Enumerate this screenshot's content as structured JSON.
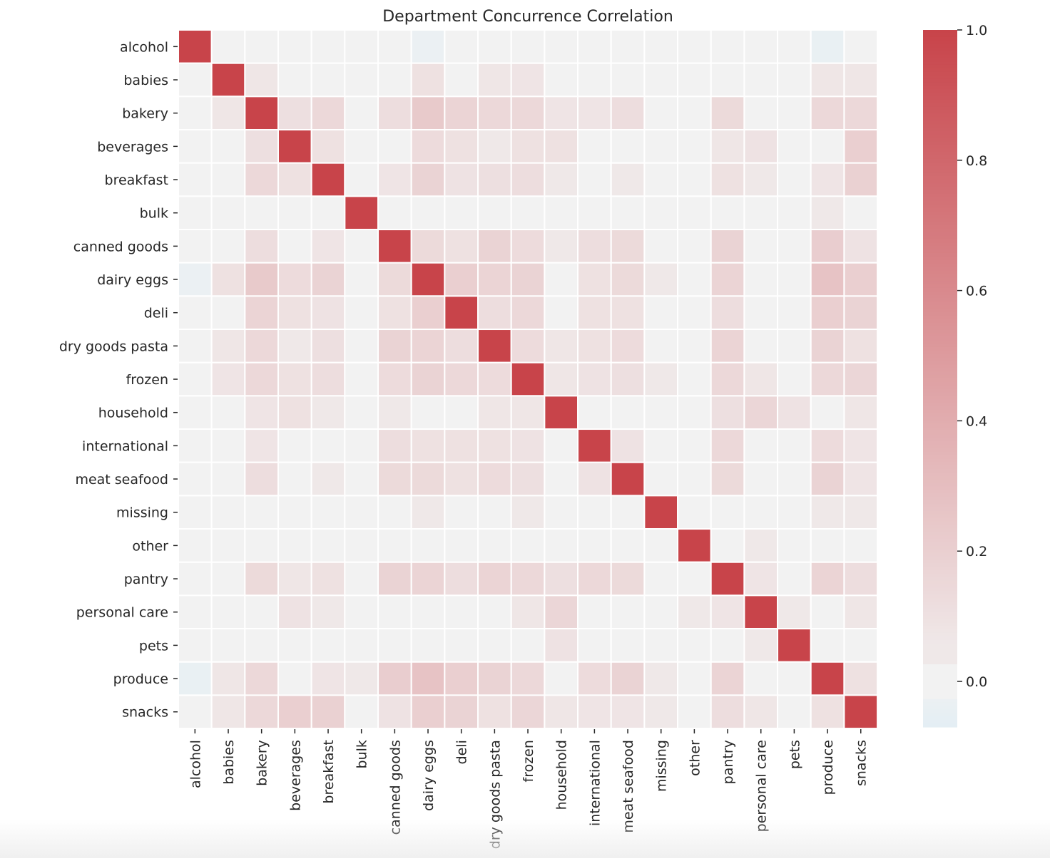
{
  "chart_data": {
    "type": "heatmap",
    "title": "Department Concurrence Correlation",
    "xlabel": "",
    "ylabel": "",
    "categories": [
      "alcohol",
      "babies",
      "bakery",
      "beverages",
      "breakfast",
      "bulk",
      "canned goods",
      "dairy eggs",
      "deli",
      "dry goods pasta",
      "frozen",
      "household",
      "international",
      "meat seafood",
      "missing",
      "other",
      "pantry",
      "personal care",
      "pets",
      "produce",
      "snacks"
    ],
    "matrix": [
      [
        1.0,
        0.0,
        0.0,
        0.0,
        0.0,
        0.0,
        0.0,
        -0.03,
        0.0,
        0.0,
        0.0,
        0.0,
        0.0,
        0.0,
        0.0,
        0.0,
        0.0,
        0.0,
        0.0,
        -0.04,
        0.0
      ],
      [
        0.0,
        1.0,
        0.07,
        0.0,
        0.0,
        0.0,
        0.0,
        0.1,
        0.0,
        0.07,
        0.08,
        0.0,
        0.0,
        0.0,
        0.0,
        0.0,
        0.0,
        0.0,
        0.0,
        0.07,
        0.07
      ],
      [
        0.0,
        0.07,
        1.0,
        0.11,
        0.15,
        0.0,
        0.12,
        0.23,
        0.17,
        0.15,
        0.15,
        0.08,
        0.08,
        0.12,
        0.0,
        0.0,
        0.14,
        0.0,
        0.0,
        0.15,
        0.15
      ],
      [
        0.0,
        0.0,
        0.11,
        1.0,
        0.1,
        0.0,
        0.0,
        0.13,
        0.1,
        0.06,
        0.1,
        0.1,
        0.0,
        0.0,
        0.0,
        0.0,
        0.07,
        0.09,
        0.0,
        0.0,
        0.2
      ],
      [
        0.0,
        0.0,
        0.15,
        0.1,
        1.0,
        0.0,
        0.08,
        0.18,
        0.09,
        0.11,
        0.12,
        0.06,
        0.0,
        0.06,
        0.0,
        0.0,
        0.1,
        0.06,
        0.0,
        0.08,
        0.19
      ],
      [
        0.0,
        0.0,
        0.0,
        0.0,
        0.0,
        1.0,
        0.0,
        0.0,
        0.0,
        0.0,
        0.0,
        0.0,
        0.0,
        0.0,
        0.0,
        0.0,
        0.0,
        0.0,
        0.0,
        0.06,
        0.0
      ],
      [
        0.0,
        0.0,
        0.12,
        0.0,
        0.08,
        0.0,
        1.0,
        0.14,
        0.1,
        0.18,
        0.13,
        0.06,
        0.12,
        0.14,
        0.0,
        0.0,
        0.18,
        0.0,
        0.0,
        0.21,
        0.09
      ],
      [
        -0.03,
        0.1,
        0.23,
        0.13,
        0.18,
        0.0,
        0.14,
        1.0,
        0.2,
        0.17,
        0.18,
        0.0,
        0.1,
        0.14,
        0.06,
        0.0,
        0.17,
        0.0,
        0.0,
        0.27,
        0.2
      ],
      [
        0.0,
        0.0,
        0.17,
        0.1,
        0.09,
        0.0,
        0.1,
        0.2,
        1.0,
        0.12,
        0.15,
        0.0,
        0.1,
        0.1,
        0.0,
        0.0,
        0.12,
        0.0,
        0.0,
        0.2,
        0.18
      ],
      [
        0.0,
        0.07,
        0.15,
        0.06,
        0.11,
        0.0,
        0.18,
        0.17,
        0.12,
        1.0,
        0.13,
        0.07,
        0.1,
        0.13,
        0.0,
        0.0,
        0.17,
        0.0,
        0.0,
        0.18,
        0.1
      ],
      [
        0.0,
        0.08,
        0.15,
        0.1,
        0.12,
        0.0,
        0.13,
        0.18,
        0.15,
        0.13,
        1.0,
        0.07,
        0.09,
        0.11,
        0.06,
        0.0,
        0.15,
        0.07,
        0.0,
        0.15,
        0.16
      ],
      [
        0.0,
        0.0,
        0.08,
        0.1,
        0.06,
        0.0,
        0.06,
        0.0,
        0.0,
        0.07,
        0.07,
        1.0,
        0.0,
        0.0,
        0.0,
        0.0,
        0.11,
        0.16,
        0.09,
        0.0,
        0.07
      ],
      [
        0.0,
        0.0,
        0.08,
        0.0,
        0.0,
        0.0,
        0.12,
        0.1,
        0.1,
        0.1,
        0.09,
        0.0,
        1.0,
        0.09,
        0.0,
        0.0,
        0.15,
        0.0,
        0.0,
        0.13,
        0.08
      ],
      [
        0.0,
        0.0,
        0.12,
        0.0,
        0.06,
        0.0,
        0.14,
        0.14,
        0.1,
        0.13,
        0.11,
        0.0,
        0.09,
        1.0,
        0.0,
        0.0,
        0.14,
        0.0,
        0.0,
        0.18,
        0.08
      ],
      [
        0.0,
        0.0,
        0.0,
        0.0,
        0.0,
        0.0,
        0.0,
        0.06,
        0.0,
        0.0,
        0.06,
        0.0,
        0.0,
        0.0,
        1.0,
        0.0,
        0.0,
        0.0,
        0.0,
        0.06,
        0.06
      ],
      [
        0.0,
        0.0,
        0.0,
        0.0,
        0.0,
        0.0,
        0.0,
        0.0,
        0.0,
        0.0,
        0.0,
        0.0,
        0.0,
        0.0,
        0.0,
        1.0,
        0.0,
        0.06,
        0.0,
        0.0,
        0.0
      ],
      [
        0.0,
        0.0,
        0.14,
        0.07,
        0.1,
        0.0,
        0.18,
        0.17,
        0.12,
        0.17,
        0.15,
        0.11,
        0.15,
        0.14,
        0.0,
        0.0,
        1.0,
        0.08,
        0.0,
        0.17,
        0.12
      ],
      [
        0.0,
        0.0,
        0.0,
        0.09,
        0.06,
        0.0,
        0.0,
        0.0,
        0.0,
        0.0,
        0.07,
        0.16,
        0.0,
        0.0,
        0.0,
        0.06,
        0.08,
        1.0,
        0.06,
        0.0,
        0.07
      ],
      [
        0.0,
        0.0,
        0.0,
        0.0,
        0.0,
        0.0,
        0.0,
        0.0,
        0.0,
        0.0,
        0.0,
        0.09,
        0.0,
        0.0,
        0.0,
        0.0,
        0.0,
        0.06,
        1.0,
        0.0,
        0.0
      ],
      [
        -0.04,
        0.07,
        0.15,
        0.0,
        0.08,
        0.06,
        0.21,
        0.27,
        0.2,
        0.18,
        0.15,
        0.0,
        0.13,
        0.18,
        0.06,
        0.0,
        0.17,
        0.0,
        0.0,
        1.0,
        0.1
      ],
      [
        0.0,
        0.07,
        0.15,
        0.2,
        0.19,
        0.0,
        0.09,
        0.2,
        0.18,
        0.1,
        0.16,
        0.07,
        0.08,
        0.08,
        0.06,
        0.0,
        0.12,
        0.07,
        0.0,
        0.1,
        1.0
      ]
    ],
    "colorbar": {
      "min": -0.07,
      "max": 1.0,
      "ticks": [
        "0.0",
        "0.2",
        "0.4",
        "0.6",
        "0.8",
        "1.0"
      ],
      "tick_values": [
        0.0,
        0.2,
        0.4,
        0.6,
        0.8,
        1.0
      ]
    },
    "colors": {
      "positive": "#c8444a",
      "center": "#f2f2f2",
      "negative": "#e3eef4",
      "grid_line": "#ffffff"
    }
  }
}
